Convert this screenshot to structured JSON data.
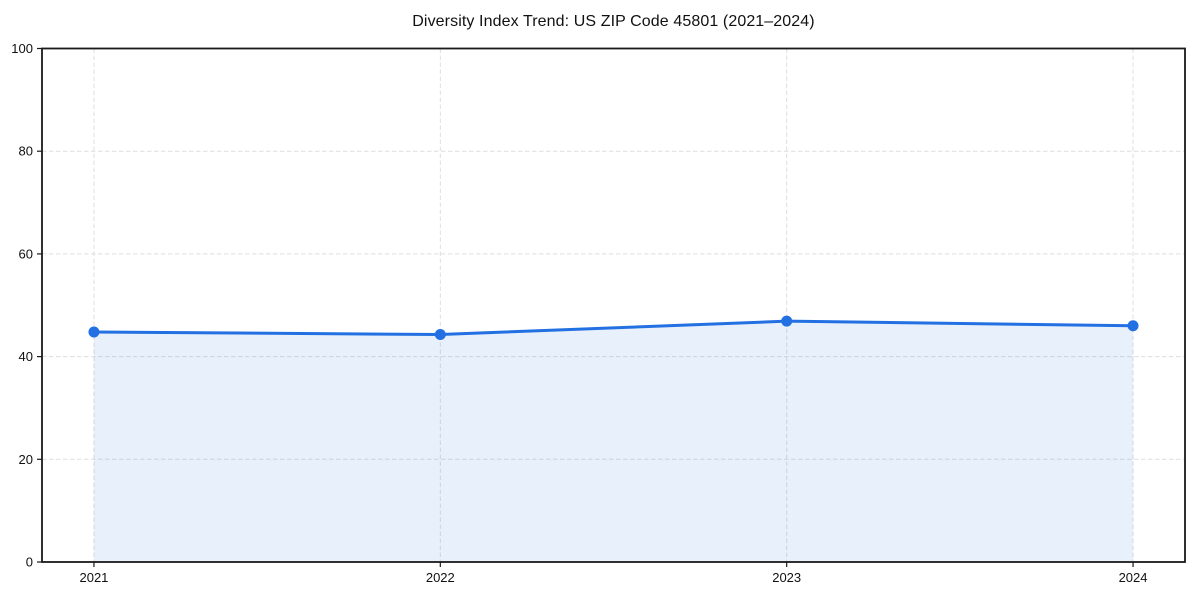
{
  "chart_data": {
    "type": "line",
    "title": "Diversity Index Trend: US ZIP Code 45801 (2021–2024)",
    "categories": [
      "2021",
      "2022",
      "2023",
      "2024"
    ],
    "series": [
      {
        "name": "Diversity Index",
        "values": [
          44.8,
          44.3,
          46.9,
          46.0
        ]
      }
    ],
    "xlabel": "",
    "ylabel": "",
    "ylim": [
      0,
      100
    ],
    "yticks": [
      0,
      20,
      40,
      60,
      80,
      100
    ],
    "grid": true,
    "grid_style": "dashed",
    "legend_position": "none",
    "marker": "circle",
    "area_fill": true,
    "colors": {
      "line": "#2270e2",
      "marker": "#2270e2",
      "fill": "rgba(34,112,226,0.10)",
      "grid": "#dedede",
      "axis": "#1a1a1a",
      "text": "#111111",
      "background": "#ffffff"
    }
  }
}
